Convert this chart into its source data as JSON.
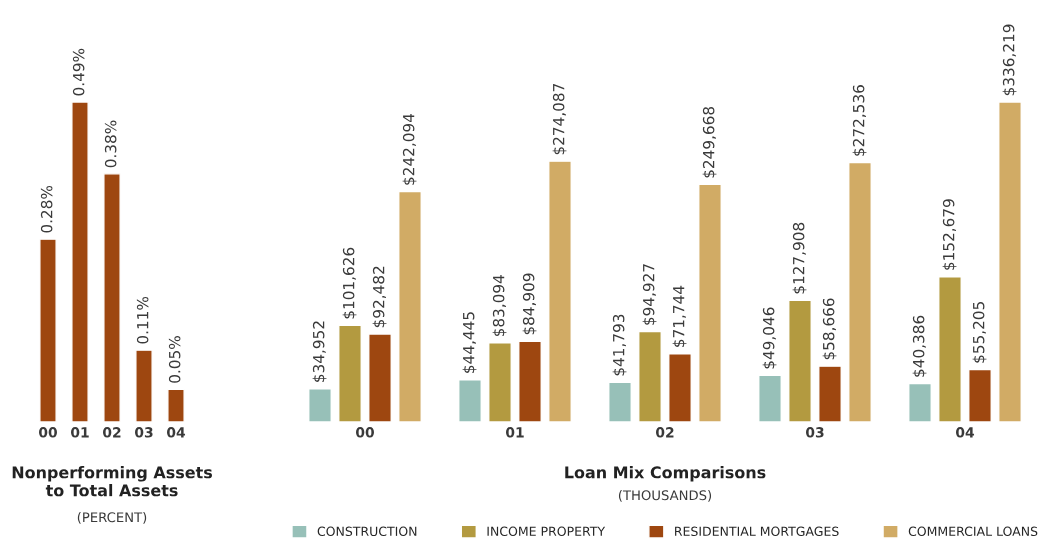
{
  "chart_data": [
    {
      "type": "bar",
      "title": "Nonperforming Assets\nto Total Assets",
      "subtitle": "(PERCENT)",
      "categories": [
        "00",
        "01",
        "02",
        "03",
        "04"
      ],
      "series": [
        {
          "color": "#9e4710",
          "values": [
            0.28,
            0.49,
            0.38,
            0.11,
            0.05
          ],
          "value_labels": [
            "0.28%",
            "0.49%",
            "0.38%",
            "0.11%",
            "0.05%"
          ]
        }
      ],
      "legend": false
    },
    {
      "type": "bar",
      "title": "Loan Mix Comparisons",
      "subtitle": "(THOUSANDS)",
      "categories": [
        "00",
        "01",
        "02",
        "03",
        "04"
      ],
      "series": [
        {
          "name": "CONSTRUCTION",
          "color": "#97c0b8",
          "values": [
            34952,
            44445,
            41793,
            49046,
            40386
          ],
          "value_labels": [
            "$34,952",
            "$44,445",
            "$41,793",
            "$49,046",
            "$40,386"
          ]
        },
        {
          "name": "INCOME PROPERTY",
          "color": "#b39a40",
          "values": [
            101626,
            83094,
            94927,
            127908,
            152679
          ],
          "value_labels": [
            "$101,626",
            "$83,094",
            "$94,927",
            "$127,908",
            "$152,679"
          ]
        },
        {
          "name": "RESIDENTIAL MORTGAGES",
          "color": "#9e4710",
          "values": [
            92482,
            84909,
            71744,
            58666,
            55205
          ],
          "value_labels": [
            "$92,482",
            "$84,909",
            "$71,744",
            "$58,666",
            "$55,205"
          ]
        },
        {
          "name": "COMMERCIAL LOANS",
          "color": "#d1ab65",
          "values": [
            242094,
            274087,
            249668,
            272536,
            336219
          ],
          "value_labels": [
            "$242,094",
            "$274,087",
            "$249,668",
            "$272,536",
            "$336,219"
          ]
        }
      ],
      "legend": "bottom"
    }
  ]
}
